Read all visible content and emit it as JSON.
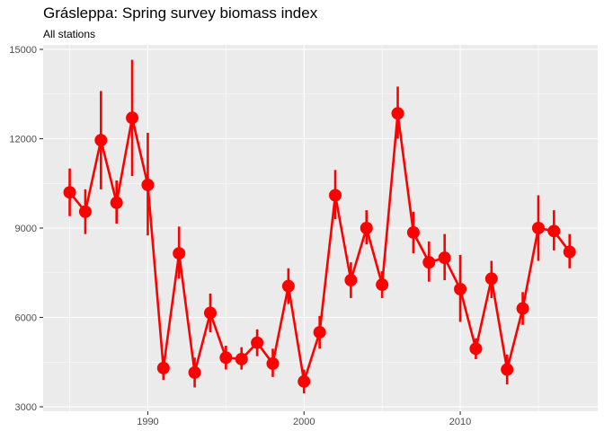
{
  "chart_data": {
    "type": "line",
    "title": "Grásleppa: Spring survey biomass index",
    "subtitle": "All stations",
    "xlabel": "",
    "ylabel": "",
    "xlim": [
      1983.3,
      2018.8
    ],
    "ylim": [
      2850,
      15150
    ],
    "x_ticks": [
      1990,
      2000,
      2010
    ],
    "y_ticks": [
      3000,
      6000,
      9000,
      12000,
      15000
    ],
    "x_tick_labels": [
      "1990",
      "2000",
      "2010"
    ],
    "y_tick_labels": [
      "3000",
      "6000",
      "9000",
      "12000",
      "15000"
    ],
    "grid": true,
    "panel_background": "#ebebeb",
    "grid_color": "#ffffff",
    "series_color": "#ff0000",
    "series": [
      {
        "points": [
          {
            "x": 1985,
            "y": 10200,
            "lo": 9400,
            "hi": 11000
          },
          {
            "x": 1986,
            "y": 9550,
            "lo": 8800,
            "hi": 10300
          },
          {
            "x": 1987,
            "y": 11950,
            "lo": 10300,
            "hi": 13600
          },
          {
            "x": 1988,
            "y": 9850,
            "lo": 9150,
            "hi": 10600
          },
          {
            "x": 1989,
            "y": 12700,
            "lo": 10750,
            "hi": 14650
          },
          {
            "x": 1990,
            "y": 10450,
            "lo": 8750,
            "hi": 12200
          },
          {
            "x": 1991,
            "y": 4300,
            "lo": 3900,
            "hi": 4700
          },
          {
            "x": 1992,
            "y": 8150,
            "lo": 7300,
            "hi": 9050
          },
          {
            "x": 1993,
            "y": 4150,
            "lo": 3650,
            "hi": 4650
          },
          {
            "x": 1994,
            "y": 6150,
            "lo": 5500,
            "hi": 6800
          },
          {
            "x": 1995,
            "y": 4650,
            "lo": 4250,
            "hi": 5050
          },
          {
            "x": 1996,
            "y": 4600,
            "lo": 4250,
            "hi": 5000
          },
          {
            "x": 1997,
            "y": 5150,
            "lo": 4700,
            "hi": 5600
          },
          {
            "x": 1998,
            "y": 4450,
            "lo": 4000,
            "hi": 4950
          },
          {
            "x": 1999,
            "y": 7050,
            "lo": 6450,
            "hi": 7650
          },
          {
            "x": 2000,
            "y": 3850,
            "lo": 3450,
            "hi": 4250
          },
          {
            "x": 2001,
            "y": 5500,
            "lo": 4950,
            "hi": 6050
          },
          {
            "x": 2002,
            "y": 10100,
            "lo": 9300,
            "hi": 10950
          },
          {
            "x": 2003,
            "y": 7250,
            "lo": 6650,
            "hi": 7850
          },
          {
            "x": 2004,
            "y": 9000,
            "lo": 8450,
            "hi": 9600
          },
          {
            "x": 2005,
            "y": 7100,
            "lo": 6650,
            "hi": 7550
          },
          {
            "x": 2006,
            "y": 12850,
            "lo": 12000,
            "hi": 13750
          },
          {
            "x": 2007,
            "y": 8850,
            "lo": 8150,
            "hi": 9550
          },
          {
            "x": 2008,
            "y": 7850,
            "lo": 7200,
            "hi": 8550
          },
          {
            "x": 2009,
            "y": 8000,
            "lo": 7250,
            "hi": 8800
          },
          {
            "x": 2010,
            "y": 6950,
            "lo": 5850,
            "hi": 8100
          },
          {
            "x": 2011,
            "y": 4950,
            "lo": 4600,
            "hi": 5300
          },
          {
            "x": 2012,
            "y": 7300,
            "lo": 6650,
            "hi": 7900
          },
          {
            "x": 2013,
            "y": 4250,
            "lo": 3750,
            "hi": 4750
          },
          {
            "x": 2014,
            "y": 6300,
            "lo": 5750,
            "hi": 6850
          },
          {
            "x": 2015,
            "y": 9000,
            "lo": 7900,
            "hi": 10100
          },
          {
            "x": 2016,
            "y": 8900,
            "lo": 8250,
            "hi": 9600
          },
          {
            "x": 2017,
            "y": 8200,
            "lo": 7650,
            "hi": 8800
          }
        ]
      }
    ]
  }
}
